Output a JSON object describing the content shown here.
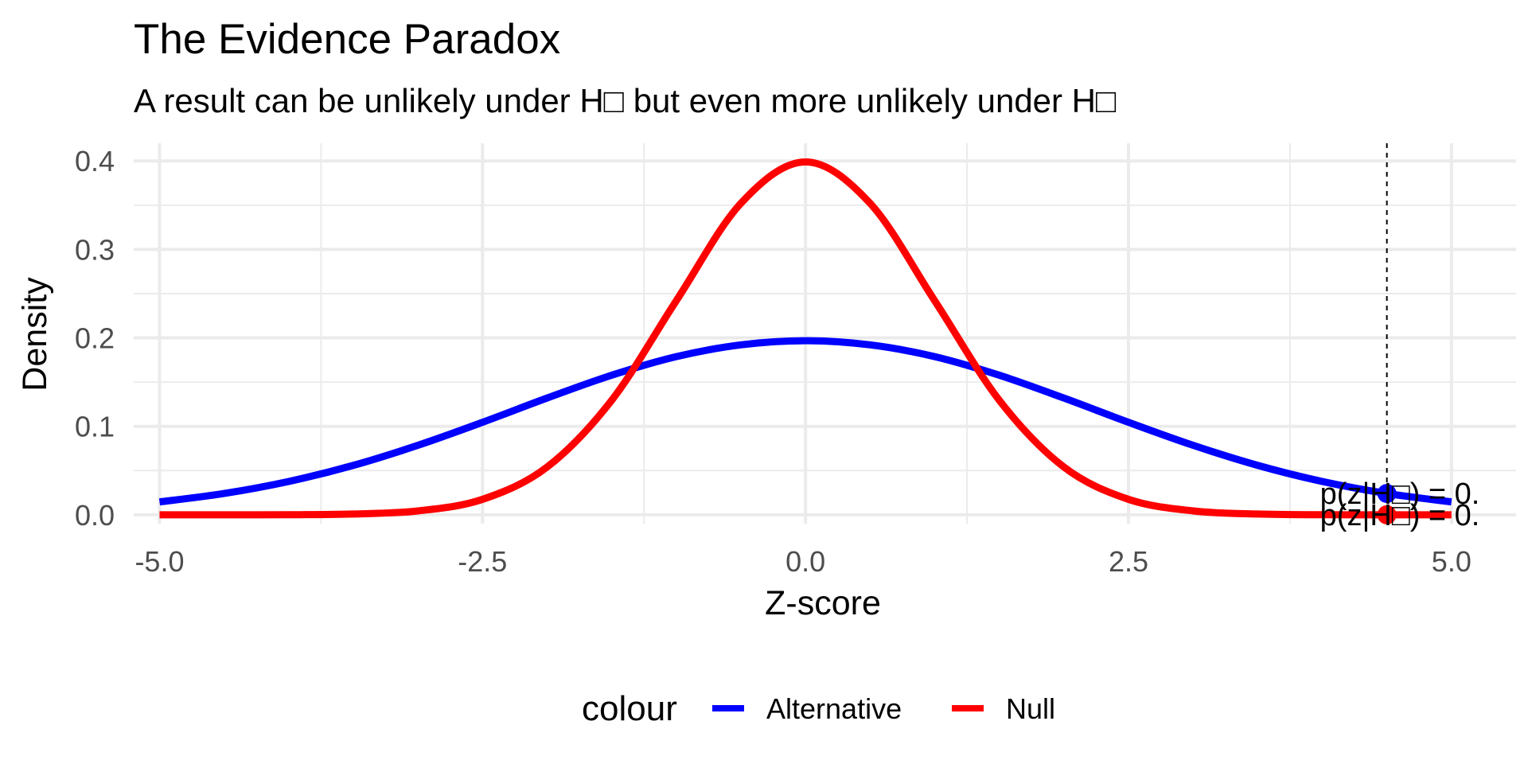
{
  "chart_data": {
    "type": "line",
    "title": "The Evidence Paradox",
    "subtitle": "A result can be unlikely under H□ but even more unlikely under H□",
    "xlabel": "Z-score",
    "ylabel": "Density",
    "xlim": [
      -5.2,
      5.5
    ],
    "ylim": [
      -0.01,
      0.42
    ],
    "x_ticks": [
      -5.0,
      -2.5,
      0.0,
      2.5,
      5.0
    ],
    "x_tick_labels": [
      "-5.0",
      "-2.5",
      "0.0",
      "2.5",
      "5.0"
    ],
    "y_ticks": [
      0.0,
      0.1,
      0.2,
      0.3,
      0.4
    ],
    "y_tick_labels": [
      "0.0",
      "0.1",
      "0.2",
      "0.3",
      "0.4"
    ],
    "grid": true,
    "legend_title": "colour",
    "legend_position": "bottom",
    "series": [
      {
        "name": "Alternative",
        "color": "#0000ff",
        "x": [
          -5.0,
          -4.5,
          -4.0,
          -3.5,
          -3.0,
          -2.5,
          -2.0,
          -1.5,
          -1.0,
          -0.5,
          0.0,
          0.5,
          1.0,
          1.5,
          2.0,
          2.5,
          3.0,
          3.5,
          4.0,
          4.5,
          5.0
        ],
        "y": [
          0.0146,
          0.0241,
          0.0377,
          0.0559,
          0.0786,
          0.1046,
          0.132,
          0.1578,
          0.1788,
          0.1921,
          0.1968,
          0.1921,
          0.1788,
          0.1578,
          0.132,
          0.1046,
          0.0786,
          0.0559,
          0.0377,
          0.0241,
          0.0146
        ]
      },
      {
        "name": "Null",
        "color": "#ff0000",
        "x": [
          -5.0,
          -4.5,
          -4.0,
          -3.5,
          -3.0,
          -2.5,
          -2.0,
          -1.5,
          -1.0,
          -0.5,
          0.0,
          0.5,
          1.0,
          1.5,
          2.0,
          2.5,
          3.0,
          3.5,
          4.0,
          4.5,
          5.0
        ],
        "y": [
          0.0,
          0.0,
          0.0001,
          0.0009,
          0.0044,
          0.0175,
          0.054,
          0.1295,
          0.242,
          0.3521,
          0.3989,
          0.3521,
          0.242,
          0.1295,
          0.054,
          0.0175,
          0.0044,
          0.0009,
          0.0001,
          0.0,
          0.0
        ]
      }
    ],
    "observed_z": 4.5,
    "points": [
      {
        "series": "Alternative",
        "x": 4.5,
        "y": 0.0241,
        "color": "#0000ff"
      },
      {
        "series": "Null",
        "x": 4.5,
        "y": 0.0,
        "color": "#ff0000"
      }
    ],
    "annotations": [
      {
        "text": "p(z|H□) = 0.",
        "x": 4.5,
        "y": 0.0241
      },
      {
        "text": "p(z|H□) = 0.",
        "x": 4.5,
        "y": 0.0
      }
    ]
  }
}
